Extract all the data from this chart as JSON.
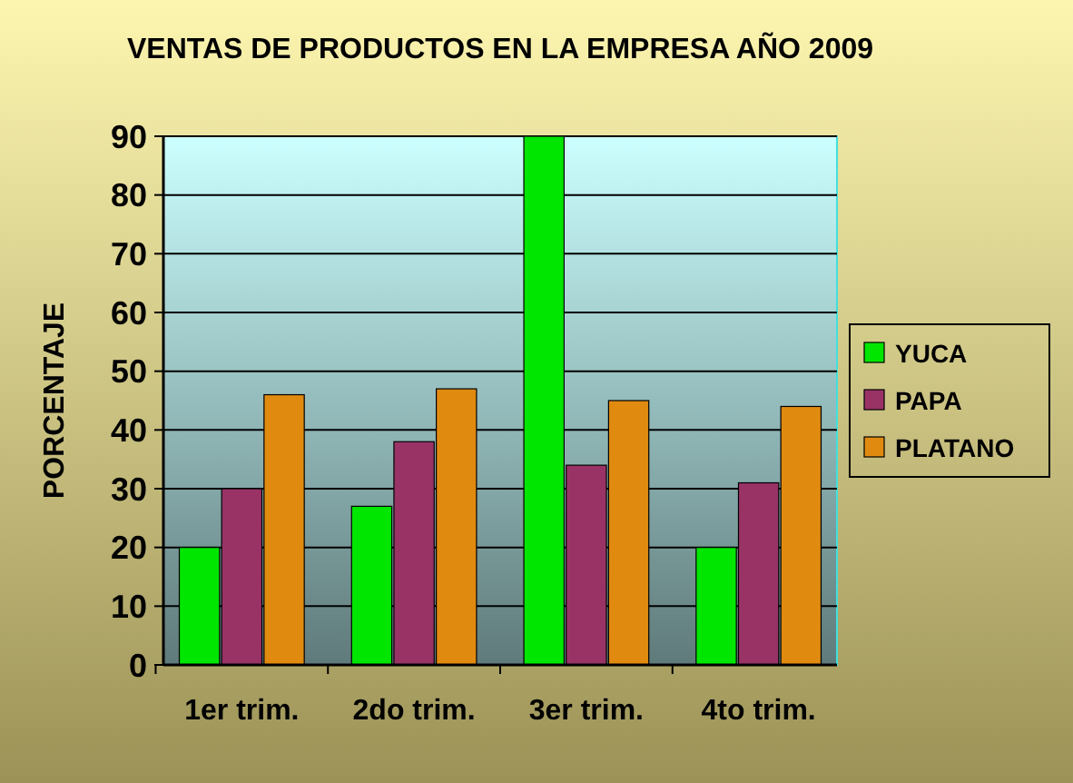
{
  "chart_data": {
    "type": "bar",
    "title": "VENTAS DE PRODUCTOS EN LA EMPRESA AÑO 2009",
    "ylabel": "PORCENTAJE",
    "categories": [
      "1er trim.",
      "2do trim.",
      "3er trim.",
      "4to trim."
    ],
    "series": [
      {
        "name": "YUCA",
        "color": "#00e600",
        "values": [
          20,
          27,
          90,
          20
        ]
      },
      {
        "name": "PAPA",
        "color": "#993366",
        "values": [
          30,
          38,
          34,
          31
        ]
      },
      {
        "name": "PLATANO",
        "color": "#e08a10",
        "values": [
          46,
          47,
          45,
          44
        ]
      }
    ],
    "ylim": [
      0,
      90
    ],
    "yticks": [
      0,
      10,
      20,
      30,
      40,
      50,
      60,
      70,
      80,
      90
    ],
    "grid": "y",
    "legend": "right"
  }
}
